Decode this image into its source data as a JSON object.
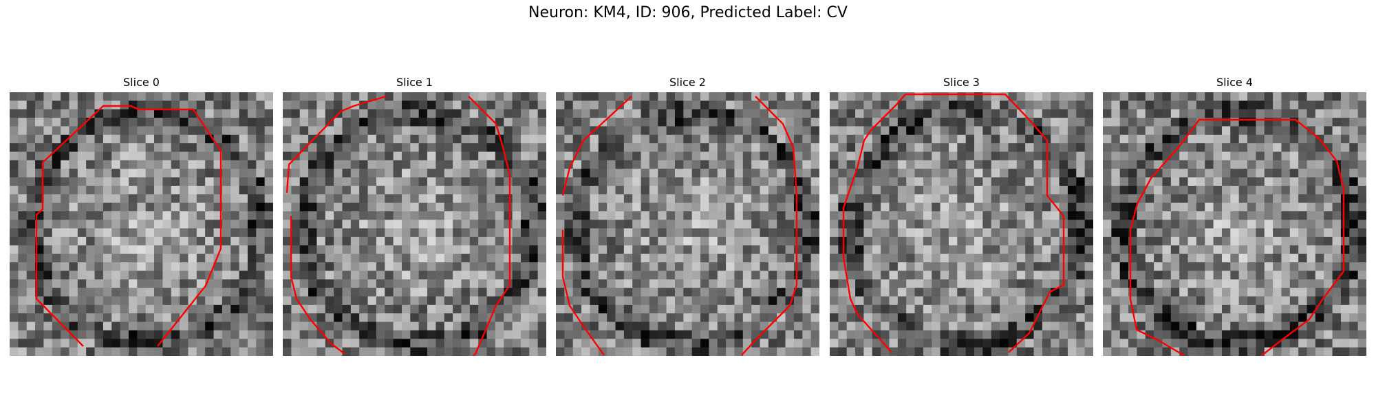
{
  "figure": {
    "title": "Neuron: KM4, ID: 906, Predicted Label: CV"
  },
  "panels": [
    {
      "title": "Slice 0",
      "seed": 11,
      "contour_color": "#ff0000"
    },
    {
      "title": "Slice 1",
      "seed": 23,
      "contour_color": "#ff0000"
    },
    {
      "title": "Slice 2",
      "seed": 37,
      "contour_color": "#ff0000"
    },
    {
      "title": "Slice 3",
      "seed": 51,
      "contour_color": "#ff0000"
    },
    {
      "title": "Slice 4",
      "seed": 67,
      "contour_color": "#ff0000"
    }
  ],
  "colormap": "gray"
}
